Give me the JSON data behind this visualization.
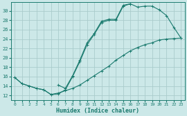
{
  "xlabel": "Humidex (Indice chaleur)",
  "bg_color": "#cce8e8",
  "grid_color": "#aacccc",
  "line_color": "#1a7a6e",
  "xlim": [
    -0.5,
    23.5
  ],
  "ylim": [
    11.0,
    31.8
  ],
  "yticks": [
    12,
    14,
    16,
    18,
    20,
    22,
    24,
    26,
    28,
    30
  ],
  "xticks": [
    0,
    1,
    2,
    3,
    4,
    5,
    6,
    7,
    8,
    9,
    10,
    11,
    12,
    13,
    14,
    15,
    16,
    17,
    18,
    19,
    20,
    21,
    22,
    23
  ],
  "line1_x": [
    0,
    1,
    2,
    3,
    4,
    5,
    6,
    7,
    8,
    9,
    10,
    11,
    12,
    13,
    14,
    15,
    16,
    17,
    18,
    19,
    20,
    21,
    22,
    23
  ],
  "line1_y": [
    15.8,
    14.5,
    14.0,
    13.5,
    13.2,
    12.2,
    12.3,
    13.2,
    16.0,
    19.2,
    22.8,
    25.0,
    27.5,
    28.0,
    28.0,
    31.0,
    31.5,
    30.8,
    31.0,
    31.0,
    30.2,
    29.0,
    26.5,
    24.2
  ],
  "line2_x": [
    0,
    1,
    2,
    3,
    4,
    5,
    6,
    7,
    8,
    9,
    10,
    11,
    12,
    13,
    14,
    15,
    16,
    17,
    18,
    19,
    20,
    21,
    22,
    23
  ],
  "line2_y": [
    15.8,
    14.5,
    14.0,
    13.5,
    13.2,
    12.2,
    12.5,
    13.0,
    13.5,
    14.2,
    15.2,
    16.2,
    17.2,
    18.2,
    19.5,
    20.5,
    21.5,
    22.2,
    22.8,
    23.2,
    23.8,
    24.0,
    24.1,
    24.2
  ],
  "line3_x": [
    6,
    7,
    8,
    9,
    10,
    11,
    12,
    13,
    14,
    15,
    16
  ],
  "line3_y": [
    14.2,
    13.5,
    16.2,
    19.5,
    23.2,
    25.2,
    27.8,
    28.2,
    28.2,
    31.2,
    31.5
  ]
}
